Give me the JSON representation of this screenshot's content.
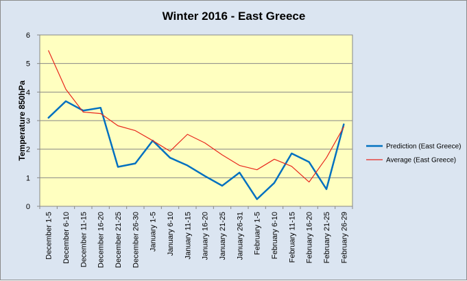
{
  "chart_data": {
    "type": "line",
    "title": "Winter 2016 - East Greece",
    "xlabel": "",
    "ylabel": "Temperature 850hPa",
    "ylim": [
      0,
      6
    ],
    "yticks": [
      0,
      1,
      2,
      3,
      4,
      5,
      6
    ],
    "grid": true,
    "legend_position": "right",
    "plot_background": "#ffffc0",
    "chart_background": "#dbe5f1",
    "categories": [
      "December 1-5",
      "December 6-10",
      "December 11-15",
      "December 16-20",
      "December 21-25",
      "December 26-30",
      "January 1-5",
      "January 6-10",
      "January 11-15",
      "January 16-20",
      "January 21-25",
      "January 26-31",
      "February 1-5",
      "February 6-10",
      "February 11-15",
      "February 16-20",
      "February 21-25",
      "February 26-29"
    ],
    "series": [
      {
        "name": "Prediction (East Greece)",
        "color": "#0070c0",
        "width": 2.5,
        "values": [
          3.1,
          3.68,
          3.35,
          3.45,
          1.38,
          1.5,
          2.3,
          1.7,
          1.43,
          1.06,
          0.72,
          1.18,
          0.25,
          0.82,
          1.85,
          1.55,
          0.6,
          2.87
        ]
      },
      {
        "name": "Average (East Greece)",
        "color": "#e8261c",
        "width": 1.2,
        "values": [
          5.45,
          4.1,
          3.3,
          3.25,
          2.82,
          2.65,
          2.3,
          1.93,
          2.52,
          2.22,
          1.8,
          1.43,
          1.28,
          1.65,
          1.4,
          0.85,
          1.7,
          2.78
        ]
      }
    ]
  }
}
